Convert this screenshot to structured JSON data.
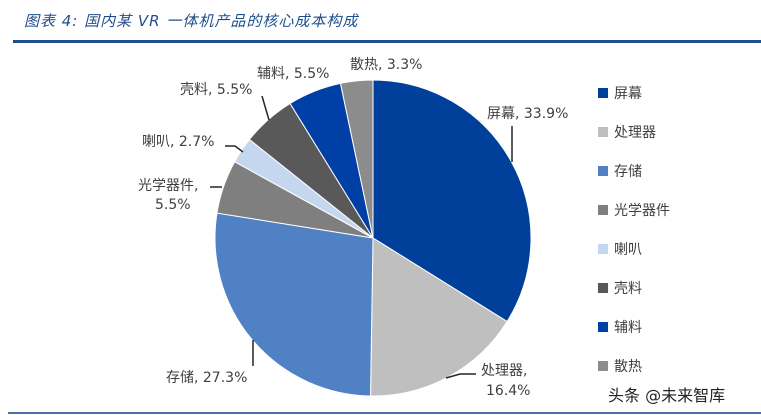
{
  "title": "图表 4:  国内某 VR 一体机产品的核心成本构成",
  "watermark": "头条 @未来智库",
  "chart_data": {
    "type": "pie",
    "title": "国内某 VR 一体机产品的核心成本构成",
    "start_angle_deg": 0,
    "direction": "clockwise",
    "legend_position": "right",
    "slices": [
      {
        "label": "屏幕",
        "value": 33.9,
        "display": "屏幕, 33.9%",
        "color": "#003f9a"
      },
      {
        "label": "处理器",
        "value": 16.4,
        "display": "处理器, 16.4%",
        "color": "#bfbfbf"
      },
      {
        "label": "存储",
        "value": 27.3,
        "display": "存储, 27.3%",
        "color": "#4f81c4"
      },
      {
        "label": "光学器件",
        "value": 5.5,
        "display": "光学器件, 5.5%",
        "color": "#7f7f7f"
      },
      {
        "label": "喇叭",
        "value": 2.7,
        "display": "喇叭, 2.7%",
        "color": "#c5d7ee"
      },
      {
        "label": "壳料",
        "value": 5.5,
        "display": "壳料, 5.5%",
        "color": "#595959"
      },
      {
        "label": "辅料",
        "value": 5.5,
        "display": "辅料, 5.5%",
        "color": "#003fa6"
      },
      {
        "label": "散热",
        "value": 3.3,
        "display": "散热, 3.3%",
        "color": "#8c8c8c"
      }
    ]
  },
  "labels": {
    "screen": "屏幕, 33.9%",
    "processor_1": "处理器,",
    "processor_2": "16.4%",
    "storage": "存储, 27.3%",
    "optics_1": "光学器件,",
    "optics_2": "5.5%",
    "speaker": "喇叭, 2.7%",
    "shell": "壳料, 5.5%",
    "accessory": "辅料, 5.5%",
    "cooling": "散热, 3.3%"
  },
  "legend": [
    {
      "label": "屏幕",
      "color": "#003f9a"
    },
    {
      "label": "处理器",
      "color": "#bfbfbf"
    },
    {
      "label": "存储",
      "color": "#4f81c4"
    },
    {
      "label": "光学器件",
      "color": "#7f7f7f"
    },
    {
      "label": "喇叭",
      "color": "#c5d7ee"
    },
    {
      "label": "壳料",
      "color": "#595959"
    },
    {
      "label": "辅料",
      "color": "#003fa6"
    },
    {
      "label": "散热",
      "color": "#8c8c8c"
    }
  ]
}
